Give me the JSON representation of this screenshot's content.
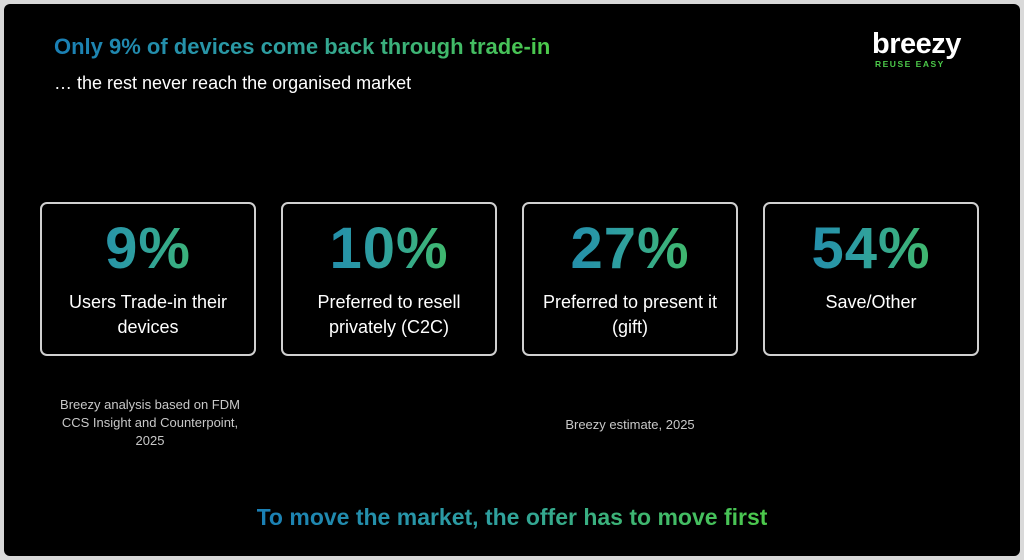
{
  "header": {
    "title": "Only 9% of devices come back through trade-in",
    "subtitle": "… the rest never reach the organised market"
  },
  "logo": {
    "word": "breezy",
    "tagline": "REUSE EASY"
  },
  "stats": [
    {
      "value": "9%",
      "label": "Users Trade-in their devices"
    },
    {
      "value": "10%",
      "label": "Preferred to resell privately (C2C)"
    },
    {
      "value": "27%",
      "label": "Preferred to present it (gift)"
    },
    {
      "value": "54%",
      "label": "Save/Other"
    }
  ],
  "notes": {
    "source_left": "Breezy analysis based on FDM CCS Insight and Counterpoint, 2025",
    "source_right": "Breezy estimate, 2025"
  },
  "footer": {
    "tagline": "To move the market, the offer has to move first"
  },
  "colors": {
    "background": "#000000",
    "gradient_start": "#1a7fb5",
    "gradient_end": "#4cc94a",
    "card_border": "#d0d0d0"
  }
}
